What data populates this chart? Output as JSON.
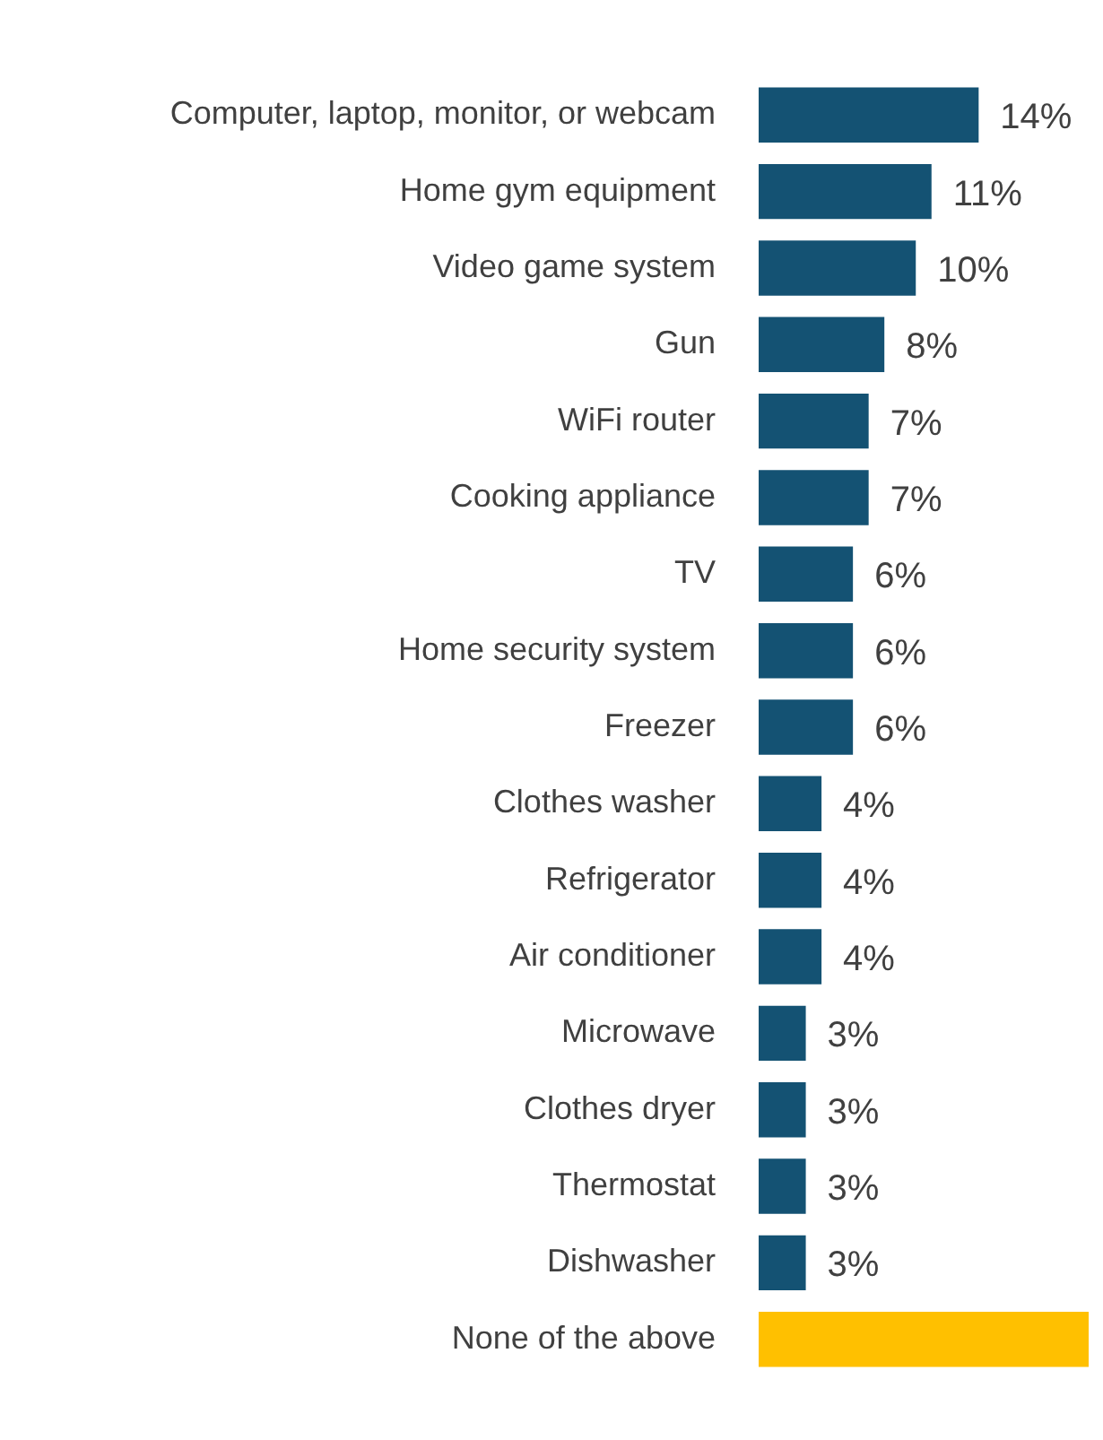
{
  "chart_data": {
    "type": "bar",
    "orientation": "horizontal",
    "categories": [
      "Computer, laptop, monitor, or webcam",
      "Home gym equipment",
      "Video game system",
      "Gun",
      "WiFi router",
      "Cooking appliance",
      "TV",
      "Home security system",
      "Freezer",
      "Clothes washer",
      "Refrigerator",
      "Air conditioner",
      "Microwave",
      "Clothes dryer",
      "Thermostat",
      "Dishwasher",
      "None of the above"
    ],
    "values": [
      14,
      11,
      10,
      8,
      7,
      7,
      6,
      6,
      6,
      4,
      4,
      4,
      3,
      3,
      3,
      3,
      21
    ],
    "colors": [
      "#145273",
      "#145273",
      "#145273",
      "#145273",
      "#145273",
      "#145273",
      "#145273",
      "#145273",
      "#145273",
      "#145273",
      "#145273",
      "#145273",
      "#145273",
      "#145273",
      "#145273",
      "#145273",
      "#ffc000"
    ],
    "value_labels": [
      "14%",
      "11%",
      "10%",
      "8%",
      "7%",
      "7%",
      "6%",
      "6%",
      "6%",
      "4%",
      "4%",
      "4%",
      "3%",
      "3%",
      "3%",
      "3%",
      null
    ],
    "tick_labels": "y",
    "legend": false
  }
}
